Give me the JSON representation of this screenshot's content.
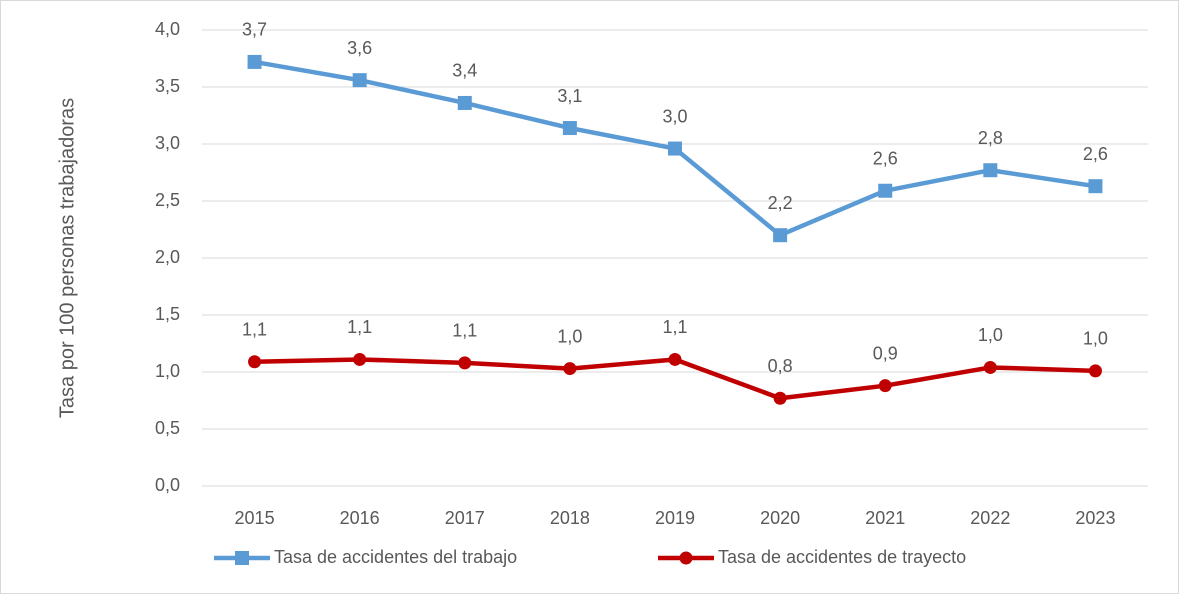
{
  "chart_data": {
    "type": "line",
    "y_label": "Tasa por 100 personas trabajadoras",
    "categories": [
      "2015",
      "2016",
      "2017",
      "2018",
      "2019",
      "2020",
      "2021",
      "2022",
      "2023"
    ],
    "series": [
      {
        "name": "Tasa de accidentes del trabajo",
        "color": "#5b9bd5",
        "marker": "square",
        "values": [
          3.72,
          3.56,
          3.36,
          3.14,
          2.96,
          2.2,
          2.59,
          2.77,
          2.63
        ],
        "value_labels": [
          "3,7",
          "3,6",
          "3,4",
          "3,1",
          "3,0",
          "2,2",
          "2,6",
          "2,8",
          "2,6"
        ]
      },
      {
        "name": "Tasa de accidentes de trayecto",
        "color": "#c00000",
        "marker": "circle",
        "values": [
          1.09,
          1.11,
          1.08,
          1.03,
          1.11,
          0.77,
          0.88,
          1.04,
          1.01
        ],
        "value_labels": [
          "1,1",
          "1,1",
          "1,1",
          "1,0",
          "1,1",
          "0,8",
          "0,9",
          "1,0",
          "1,0"
        ]
      }
    ],
    "ylim": [
      0,
      4
    ],
    "yticks": [
      {
        "value": 0,
        "label": "0,0"
      },
      {
        "value": 0.5,
        "label": "0,5"
      },
      {
        "value": 1,
        "label": "1,0"
      },
      {
        "value": 1.5,
        "label": "1,5"
      },
      {
        "value": 2,
        "label": "2,0"
      },
      {
        "value": 2.5,
        "label": "2,5"
      },
      {
        "value": 3,
        "label": "3,0"
      },
      {
        "value": 3.5,
        "label": "3,5"
      },
      {
        "value": 4,
        "label": "4,0"
      }
    ],
    "grid": true,
    "legend": "bottom"
  }
}
